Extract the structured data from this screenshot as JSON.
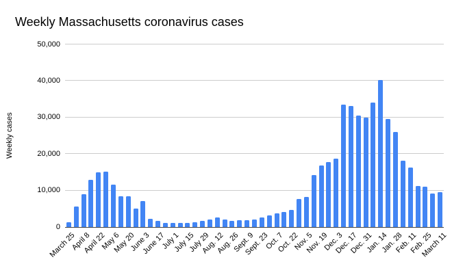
{
  "chart_data": {
    "type": "bar",
    "title": "Weekly Massachusetts coronavirus cases",
    "xlabel": "",
    "ylabel": "Weekly cases",
    "ylim": [
      0,
      50000
    ],
    "grid": true,
    "legend": "none",
    "bar_color": "#4285f4",
    "gridline_color": "#cccccc",
    "axis_line_color": "#424242",
    "text_color": "#000000",
    "y_tick_labels": [
      "0",
      "10,000",
      "20,000",
      "30,000",
      "40,000",
      "50,000"
    ],
    "x_tick_labels": [
      "March 25",
      "April 8",
      "April 22",
      "May 6",
      "May 20",
      "June 3",
      "June 17",
      "July 1",
      "July 15",
      "July 29",
      "Aug. 12",
      "Aug. 26",
      "Sept. 9",
      "Sept. 23",
      "Oct. 7",
      "Oct. 22",
      "Nov. 5",
      "Nov. 19",
      "Dec. 3",
      "Dec. 17",
      "Dec. 31",
      "Jan. 14",
      "Jan. 28",
      "Feb. 11",
      "Feb. 25",
      "March 11"
    ],
    "label_every_n_bars": 2,
    "values": [
      1400,
      5700,
      8900,
      13000,
      14900,
      15200,
      11600,
      8400,
      8500,
      5000,
      7200,
      2300,
      1600,
      1200,
      1100,
      1200,
      1100,
      1300,
      1700,
      2100,
      2600,
      2100,
      1600,
      1800,
      1900,
      2000,
      2600,
      3100,
      3800,
      4200,
      4600,
      7700,
      8300,
      14200,
      16900,
      17700,
      18700,
      33600,
      33200,
      30500,
      30000,
      34000,
      40200,
      29600,
      26000,
      18200,
      16200,
      11200,
      11000,
      9200,
      9600
    ]
  }
}
